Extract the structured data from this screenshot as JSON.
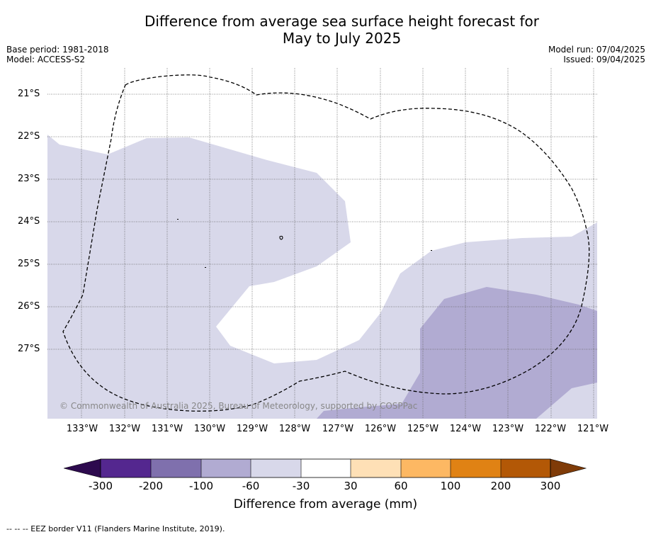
{
  "header": {
    "title_line1": "Difference from average sea surface height forecast for",
    "title_line2": "May to July 2025",
    "base_period": "Base period: 1981-2018",
    "model": "Model: ACCESS-S2",
    "model_run": "Model run: 07/04/2025",
    "issued": "Issued: 09/04/2025"
  },
  "map": {
    "lat_labels": [
      "21°S",
      "22°S",
      "23°S",
      "24°S",
      "25°S",
      "26°S",
      "27°S"
    ],
    "lon_labels": [
      "133°W",
      "132°W",
      "131°W",
      "130°W",
      "129°W",
      "128°W",
      "127°W",
      "126°W",
      "125°W",
      "124°W",
      "123°W",
      "122°W",
      "121°W"
    ],
    "copyright": "© Commonwealth of Australia 2025, Bureau of Meteorology, supported by COSPPac",
    "fill_colors": {
      "light_purple": "#d8d8ea",
      "mid_purple": "#b1abd2"
    },
    "eez_border_style": "dashed"
  },
  "colorbar": {
    "title": "Difference from average (mm)",
    "tick_labels": [
      "-300",
      "-200",
      "-100",
      "-60",
      "-30",
      "30",
      "60",
      "100",
      "200",
      "300"
    ],
    "colors": [
      "#2d0a4e",
      "#54278f",
      "#7f70ad",
      "#b1abd2",
      "#d8d8ea",
      "#ffffff",
      "#fee0b6",
      "#fdb863",
      "#e08214",
      "#b35806",
      "#7f3b08"
    ]
  },
  "footer": {
    "footnote": "--  --  -- EEZ border V11 (Flanders Marine Institute, 2019)."
  }
}
